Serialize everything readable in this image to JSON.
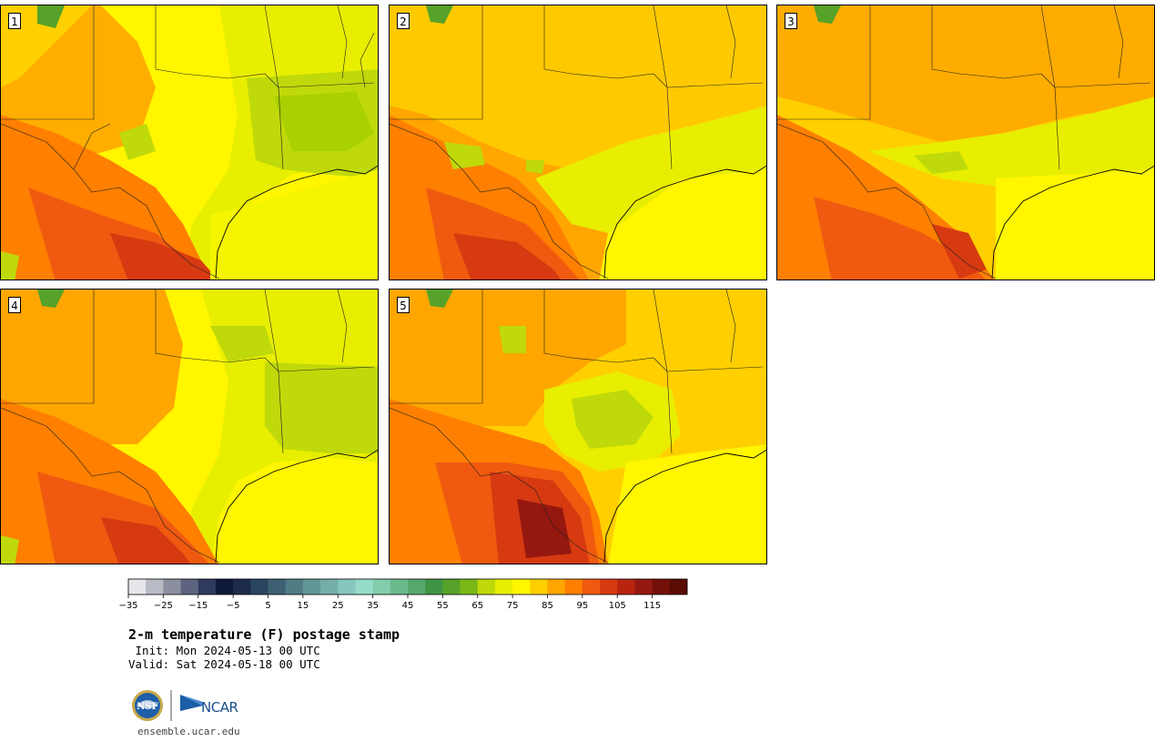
{
  "panels": [
    {
      "label": "1"
    },
    {
      "label": "2"
    },
    {
      "label": "3"
    },
    {
      "label": "4"
    },
    {
      "label": "5"
    }
  ],
  "colorbar": {
    "ticks": [
      "−35",
      "−25",
      "−15",
      "−5",
      "5",
      "15",
      "25",
      "35",
      "45",
      "55",
      "65",
      "75",
      "85",
      "95",
      "105",
      "115"
    ],
    "colors": [
      "#e5e6ea",
      "#b8bac5",
      "#8b8fa0",
      "#5e6480",
      "#2f3a5e",
      "#0f1a3a",
      "#1c2b49",
      "#2a4560",
      "#3d6072",
      "#4f7c85",
      "#619596",
      "#74aea9",
      "#86c6bc",
      "#96dcc8",
      "#84ccab",
      "#6ab98b",
      "#55a86e",
      "#3f9545",
      "#57a228",
      "#7ab818",
      "#bfd90a",
      "#e8ee00",
      "#fff600",
      "#ffcf00",
      "#ffa600",
      "#ff7f00",
      "#f05a10",
      "#d73a10",
      "#b82410",
      "#951810",
      "#731008",
      "#5a0c04"
    ]
  },
  "title": {
    "main": "2-m temperature (F) postage stamp",
    "init": " Init: Mon 2024-05-13 00 UTC",
    "valid": "Valid: Sat 2024-05-18 00 UTC"
  },
  "logos": {
    "nsf": "NSF",
    "ncar": "NCAR"
  },
  "site": "ensemble.ucar.edu"
}
